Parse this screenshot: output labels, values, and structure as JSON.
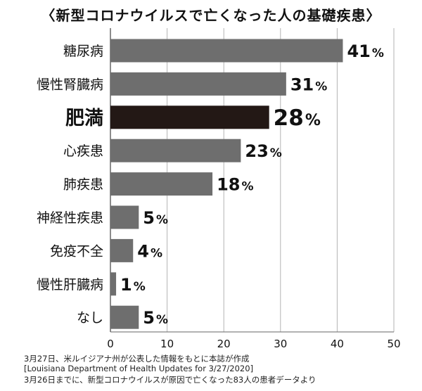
{
  "chart_data": {
    "type": "bar",
    "orientation": "horizontal",
    "title": "〈新型コロナウイルスで亡くなった人の基礎疾患〉",
    "categories": [
      "糖尿病",
      "慢性腎臓病",
      "肥満",
      "心疾患",
      "肺疾患",
      "神経性疾患",
      "免疫不全",
      "慢性肝臓病",
      "なし"
    ],
    "values": [
      41,
      31,
      28,
      23,
      18,
      5,
      4,
      1,
      5
    ],
    "value_suffix": "%",
    "highlight_category": "肥満",
    "xlim": [
      0,
      50
    ],
    "xticks": [
      0,
      10,
      20,
      30,
      40,
      50
    ],
    "grid": true,
    "bar_color": "#6e6e6e",
    "highlight_color": "#231815",
    "grid_color": "#b3b3b3"
  },
  "notes": [
    "3月27日、米ルイジアナ州が公表した情報をもとに本誌が作成",
    "[Louisiana Department of Health Updates for 3/27/2020]",
    "3月26日までに、新型コロナウイルスが原因で亡くなった83人の患者データより"
  ]
}
